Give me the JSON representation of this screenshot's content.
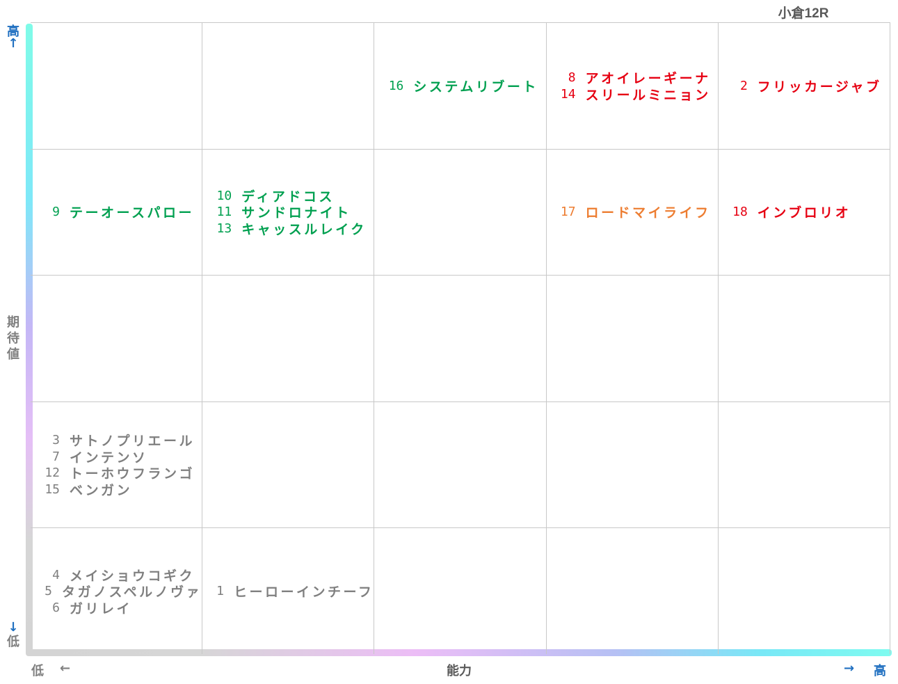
{
  "title": "小倉12R",
  "chart_data": {
    "type": "table",
    "title": "小倉12R",
    "xlabel": "能力",
    "ylabel": "期待値",
    "x_low": "低",
    "x_high": "高",
    "y_low": "低",
    "y_high": "高",
    "x_arrow_left": "←",
    "x_arrow_right": "→",
    "y_arrow_up": "↑",
    "y_arrow_down": "↓",
    "columns": 5,
    "rows": 5,
    "cells": [
      {
        "row": 0,
        "col": 2,
        "entries": [
          {
            "num": "16",
            "name": "システムリブート",
            "color": "#00a050"
          }
        ]
      },
      {
        "row": 0,
        "col": 3,
        "entries": [
          {
            "num": "8",
            "name": "アオイレーギーナ",
            "color": "#e60012"
          },
          {
            "num": "14",
            "name": "スリールミニョン",
            "color": "#e60012"
          }
        ]
      },
      {
        "row": 0,
        "col": 4,
        "entries": [
          {
            "num": "2",
            "name": "フリッカージャブ",
            "color": "#e60012"
          }
        ]
      },
      {
        "row": 1,
        "col": 0,
        "entries": [
          {
            "num": "9",
            "name": "テーオースパロー",
            "color": "#00a050"
          }
        ]
      },
      {
        "row": 1,
        "col": 1,
        "entries": [
          {
            "num": "10",
            "name": "ディアドコス",
            "color": "#00a050"
          },
          {
            "num": "11",
            "name": "サンドロナイト",
            "color": "#00a050"
          },
          {
            "num": "13",
            "name": "キャッスルレイク",
            "color": "#00a050"
          }
        ]
      },
      {
        "row": 1,
        "col": 3,
        "entries": [
          {
            "num": "17",
            "name": "ロードマイライフ",
            "color": "#ed7d31"
          }
        ]
      },
      {
        "row": 1,
        "col": 4,
        "entries": [
          {
            "num": "18",
            "name": "インブロリオ",
            "color": "#e60012"
          }
        ]
      },
      {
        "row": 3,
        "col": 0,
        "entries": [
          {
            "num": "3",
            "name": "サトノプリエール",
            "color": "#7f7f7f"
          },
          {
            "num": "7",
            "name": "インテンソ",
            "color": "#7f7f7f"
          },
          {
            "num": "12",
            "name": "トーホウフランゴ",
            "color": "#7f7f7f"
          },
          {
            "num": "15",
            "name": "ベンガン",
            "color": "#7f7f7f"
          }
        ]
      },
      {
        "row": 4,
        "col": 0,
        "entries": [
          {
            "num": "4",
            "name": "メイショウコギク",
            "color": "#7f7f7f"
          },
          {
            "num": "5",
            "name": "タガノスペルノヴァ",
            "color": "#7f7f7f"
          },
          {
            "num": "6",
            "name": "ガリレイ",
            "color": "#7f7f7f"
          }
        ]
      },
      {
        "row": 4,
        "col": 1,
        "entries": [
          {
            "num": "1",
            "name": "ヒーローインチーフ",
            "color": "#7f7f7f"
          }
        ]
      }
    ]
  },
  "colors": {
    "axis_blue": "#1f6fc0",
    "axis_gray": "#7f7f7f",
    "grid_line": "#c8c8c8"
  }
}
